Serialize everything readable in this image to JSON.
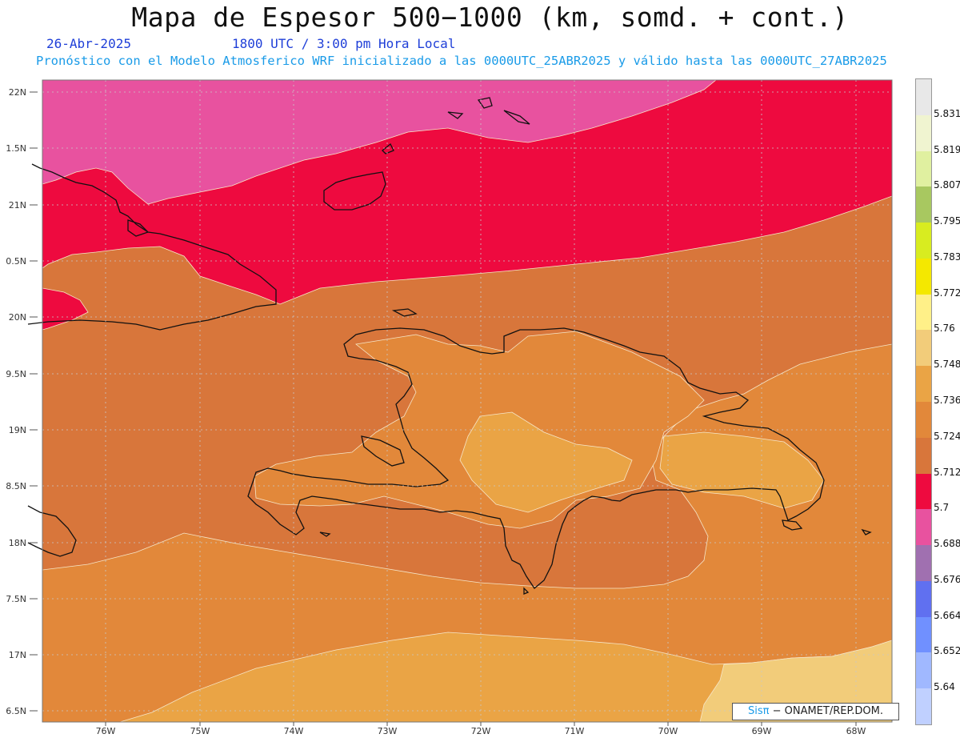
{
  "header": {
    "title": "Mapa de Espesor 500−1000 (km, somd. + cont.)",
    "date": "26-Abr-2025",
    "time": "1800 UTC / 3:00 pm Hora Local",
    "forecast": "Pronóstico con el Modelo Atmosferico WRF inicializado a las 0000UTC_25ABR2025 y válido hasta las  0000UTC_27ABR2025"
  },
  "map": {
    "lat_labels": [
      "22N",
      "1.5N",
      "21N",
      "0.5N",
      "20N",
      "9.5N",
      "19N",
      "8.5N",
      "18N",
      "7.5N",
      "17N",
      "6.5N"
    ],
    "lon_labels": [
      "76W",
      "75W",
      "74W",
      "73W",
      "72W",
      "71W",
      "70W",
      "69W",
      "68W"
    ],
    "field_colors": {
      "c5688": "#e8529f",
      "c5700": "#ee0a3f",
      "c5712": "#d8763b",
      "c5724": "#e2883a",
      "c5736": "#eaa445",
      "c5748": "#f2cc7a"
    }
  },
  "colorbar": {
    "labels": [
      "5.831",
      "5.819",
      "5.807",
      "5.795",
      "5.783",
      "5.772",
      "5.76",
      "5.748",
      "5.736",
      "5.724",
      "5.712",
      "5.7",
      "5.688",
      "5.676",
      "5.664",
      "5.652",
      "5.64"
    ],
    "colors": [
      "#e8e8e8",
      "#f0f4d0",
      "#e0f0a0",
      "#a8c860",
      "#d8ec20",
      "#f4e800",
      "#fff088",
      "#f2cc7a",
      "#eaa445",
      "#e2883a",
      "#d8763b",
      "#ee0a3f",
      "#e8529f",
      "#a070b0",
      "#6070f0",
      "#7090ff",
      "#a0b8ff",
      "#c0d0ff"
    ]
  },
  "credit": {
    "brand": "Sisπ",
    "text": " − ONAMET/REP.DOM."
  }
}
